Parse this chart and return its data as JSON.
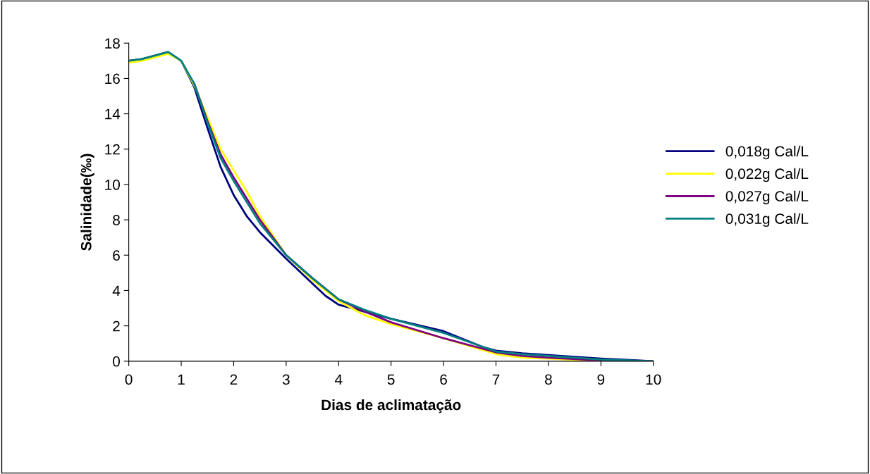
{
  "chart_data": {
    "type": "line",
    "xlabel": "Dias de aclimatação",
    "ylabel": "Salinidade(‰)",
    "xlim": [
      0,
      10
    ],
    "ylim": [
      0,
      18
    ],
    "xticks": [
      0,
      1,
      2,
      3,
      4,
      5,
      6,
      7,
      8,
      9,
      10
    ],
    "yticks": [
      0,
      2,
      4,
      6,
      8,
      10,
      12,
      14,
      16,
      18
    ],
    "grid": false,
    "legend": "right",
    "marker": "none",
    "line_style": "solid",
    "series": [
      {
        "name": "0,018g Cal/L",
        "color": "#000080",
        "x": [
          0,
          0.25,
          0.5,
          0.75,
          1,
          1.25,
          1.5,
          1.75,
          2,
          2.25,
          2.5,
          3,
          3.5,
          3.75,
          4,
          4.5,
          5,
          6,
          6.25,
          6.75,
          7,
          7.5,
          8,
          9,
          10
        ],
        "values": [
          17.0,
          17.1,
          17.3,
          17.5,
          17.0,
          15.5,
          13.2,
          11.0,
          9.4,
          8.2,
          7.3,
          5.8,
          4.4,
          3.7,
          3.2,
          2.8,
          2.4,
          1.7,
          1.4,
          0.8,
          0.6,
          0.45,
          0.35,
          0.15,
          0
        ]
      },
      {
        "name": "0,022g Cal/L",
        "color": "#ffff00",
        "x": [
          0,
          0.25,
          0.5,
          0.75,
          1,
          1.25,
          1.5,
          1.75,
          2,
          2.25,
          2.5,
          3,
          3.5,
          4,
          4.5,
          5,
          6,
          7,
          7.5,
          8,
          9,
          10
        ],
        "values": [
          16.9,
          17.0,
          17.2,
          17.4,
          17.0,
          15.6,
          13.8,
          12.0,
          10.8,
          9.6,
          8.2,
          6.0,
          4.6,
          3.4,
          2.6,
          2.1,
          1.3,
          0.4,
          0.2,
          0.15,
          0,
          0
        ]
      },
      {
        "name": "0,027g Cal/L",
        "color": "#800080",
        "x": [
          1.25,
          1.5,
          1.75,
          2,
          2.25,
          2.5,
          3,
          3.5,
          4,
          4.5,
          5,
          6,
          7,
          7.5,
          8,
          9,
          10
        ],
        "values": [
          15.7,
          13.6,
          11.7,
          10.4,
          9.2,
          8.0,
          6.0,
          4.7,
          3.5,
          2.8,
          2.2,
          1.3,
          0.5,
          0.3,
          0.2,
          0.05,
          0
        ]
      },
      {
        "name": "0,031g Cal/L",
        "color": "#008080",
        "x": [
          0,
          0.25,
          0.5,
          0.75,
          1,
          1.25,
          1.5,
          1.75,
          2,
          2.25,
          2.5,
          3,
          3.5,
          4,
          4.5,
          5,
          6,
          7,
          7.5,
          8,
          9,
          10
        ],
        "values": [
          17.0,
          17.1,
          17.3,
          17.5,
          17.0,
          15.7,
          13.5,
          11.5,
          10.2,
          9.0,
          7.8,
          6.0,
          4.7,
          3.5,
          2.9,
          2.4,
          1.6,
          0.55,
          0.4,
          0.3,
          0.1,
          0
        ]
      }
    ]
  }
}
